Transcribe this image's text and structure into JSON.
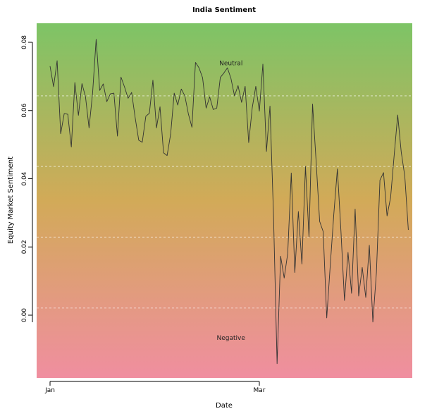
{
  "chart_data": {
    "type": "line",
    "title": "India Sentiment",
    "xlabel": "Date",
    "ylabel": "Equity Market Sentiment",
    "x_ticks": [
      {
        "label": "Jan",
        "x": 0
      },
      {
        "label": "Mar",
        "x": 59
      }
    ],
    "ylim": [
      -0.0145,
      0.085
    ],
    "y_ticks": [
      0.0,
      0.02,
      0.04,
      0.06,
      0.08
    ],
    "y_tick_labels": [
      "0.00",
      "0.02",
      "0.04",
      "0.06",
      "0.08"
    ],
    "gridlines_y": [
      0.0021,
      0.0229,
      0.0436,
      0.0643
    ],
    "background_gradient": {
      "top_color": "#7dc466",
      "mid_color": "#d2aa58",
      "bottom_color": "#f08ea0"
    },
    "annotations": [
      {
        "text": "Neutral",
        "x": 51,
        "y": 0.0733
      },
      {
        "text": "Negative",
        "x": 51,
        "y": -0.0072
      }
    ],
    "series": [
      {
        "color": "#333333",
        "x": [
          0,
          1,
          2,
          3,
          4,
          5,
          6,
          7,
          8,
          9,
          10,
          11,
          12,
          13,
          14,
          15,
          16,
          17,
          18,
          19,
          20,
          21,
          22,
          23,
          24,
          25,
          26,
          27,
          28,
          29,
          30,
          31,
          32,
          33,
          34,
          35,
          36,
          37,
          38,
          39,
          40,
          41,
          42,
          43,
          44,
          45,
          46,
          47,
          48,
          49,
          50,
          51,
          52,
          53,
          54,
          55,
          56,
          57,
          58,
          59,
          60,
          61,
          62,
          63,
          64,
          65,
          66,
          67,
          68,
          69,
          70,
          71,
          72,
          73,
          74,
          75,
          76,
          77,
          78,
          79,
          80,
          81,
          82,
          83,
          84,
          85,
          86,
          87,
          88,
          89,
          90,
          91,
          92,
          93,
          94,
          95,
          96,
          97,
          98,
          99,
          100,
          101
        ],
        "values": [
          0.073,
          0.067,
          0.0746,
          0.0532,
          0.0591,
          0.0589,
          0.0493,
          0.0682,
          0.0586,
          0.0679,
          0.064,
          0.0549,
          0.0652,
          0.0809,
          0.0659,
          0.0678,
          0.0626,
          0.0649,
          0.0651,
          0.0525,
          0.0698,
          0.0669,
          0.0636,
          0.0653,
          0.0579,
          0.0513,
          0.0507,
          0.0583,
          0.0592,
          0.0689,
          0.0549,
          0.0611,
          0.0476,
          0.0468,
          0.0531,
          0.0651,
          0.0616,
          0.0663,
          0.0643,
          0.059,
          0.0551,
          0.0741,
          0.0725,
          0.0696,
          0.0607,
          0.064,
          0.0603,
          0.0607,
          0.0697,
          0.071,
          0.0725,
          0.0694,
          0.0643,
          0.0673,
          0.0624,
          0.0671,
          0.0506,
          0.0608,
          0.0671,
          0.0598,
          0.0736,
          0.048,
          0.0613,
          0.029,
          -0.0142,
          0.0173,
          0.0109,
          0.0181,
          0.0417,
          0.0125,
          0.0304,
          0.015,
          0.0436,
          0.023,
          0.0619,
          0.0452,
          0.0275,
          0.0245,
          -0.0008,
          0.0148,
          0.0297,
          0.0429,
          0.0247,
          0.0043,
          0.0184,
          0.0064,
          0.0311,
          0.0056,
          0.014,
          0.0052,
          0.0205,
          -0.002,
          0.0125,
          0.0396,
          0.0418,
          0.0291,
          0.0345,
          0.0468,
          0.0587,
          0.0478,
          0.0408,
          0.025
        ]
      }
    ]
  }
}
